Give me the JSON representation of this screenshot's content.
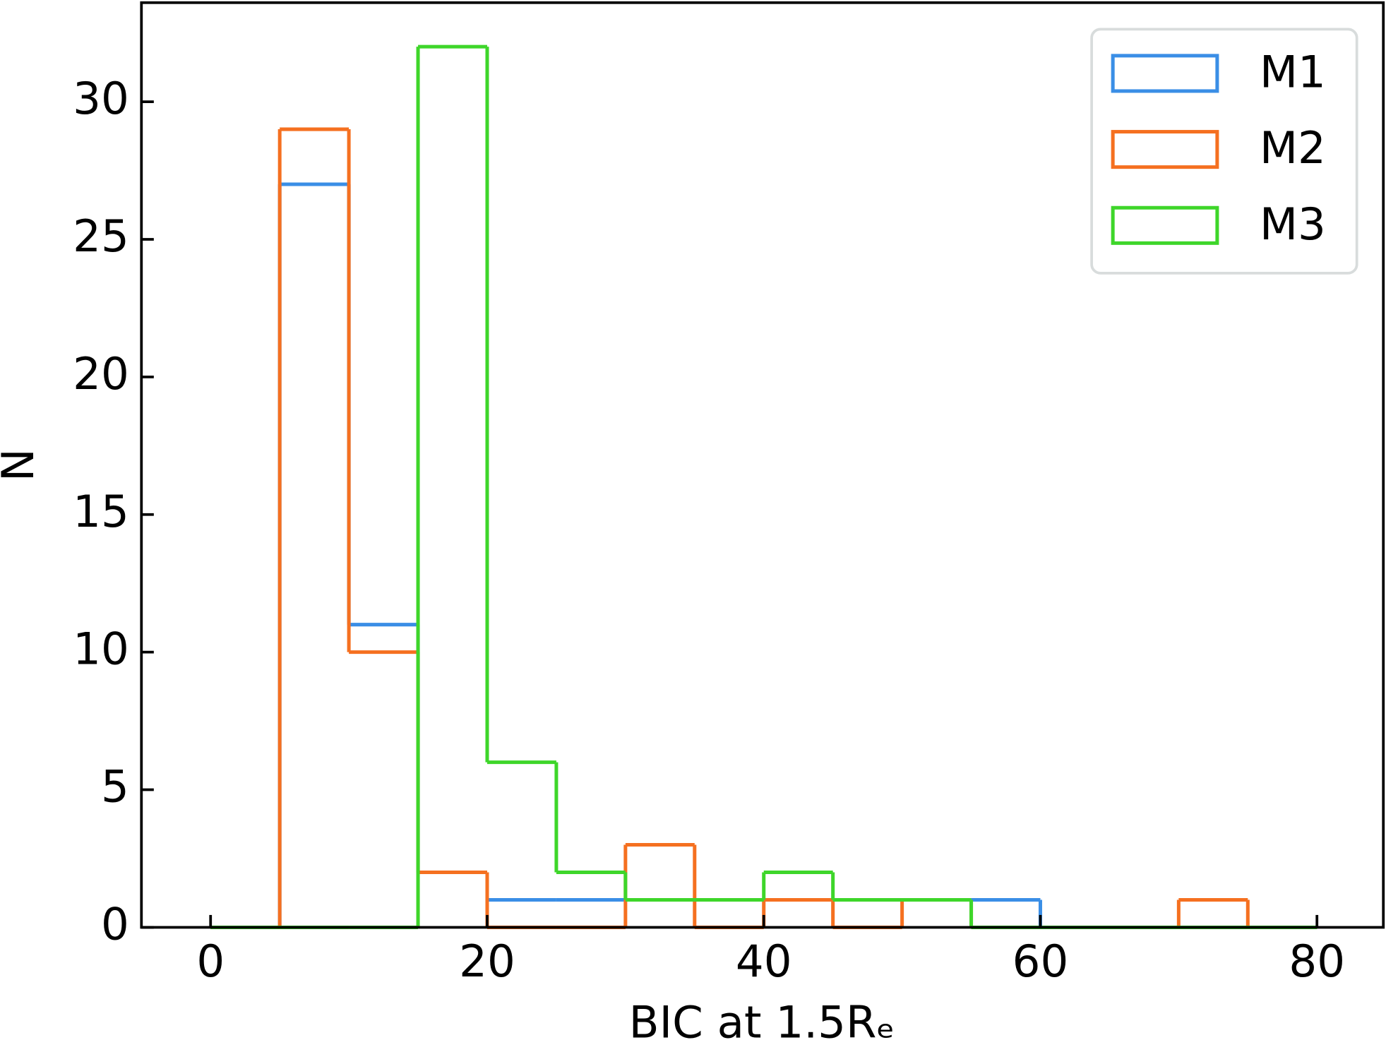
{
  "chart_data": {
    "type": "histogram",
    "xlabel": "BIC at 1.5Rₑ",
    "ylabel": "N",
    "bins": [
      0,
      5,
      10,
      15,
      20,
      25,
      30,
      35,
      40,
      45,
      50,
      55,
      60,
      65,
      70,
      75,
      80
    ],
    "series": [
      {
        "name": "M1",
        "color": "#3a8ee6",
        "values": [
          0,
          27,
          11,
          2,
          1,
          1,
          1,
          1,
          1,
          1,
          1,
          1,
          0,
          0,
          0,
          0
        ]
      },
      {
        "name": "M2",
        "color": "#f57020",
        "values": [
          0,
          29,
          10,
          2,
          0,
          0,
          3,
          0,
          1,
          0,
          1,
          0,
          0,
          0,
          1,
          0
        ]
      },
      {
        "name": "M3",
        "color": "#3ed62a",
        "values": [
          0,
          0,
          0,
          32,
          6,
          2,
          1,
          1,
          2,
          1,
          1,
          0,
          0,
          0,
          0,
          0
        ]
      }
    ],
    "xlim": [
      -5,
      84.8
    ],
    "ylim": [
      0,
      33.6
    ],
    "xticks": [
      0,
      20,
      40,
      60,
      80
    ],
    "yticks": [
      0,
      5,
      10,
      15,
      20,
      25,
      30
    ],
    "legend": "upper right",
    "grid": false
  }
}
